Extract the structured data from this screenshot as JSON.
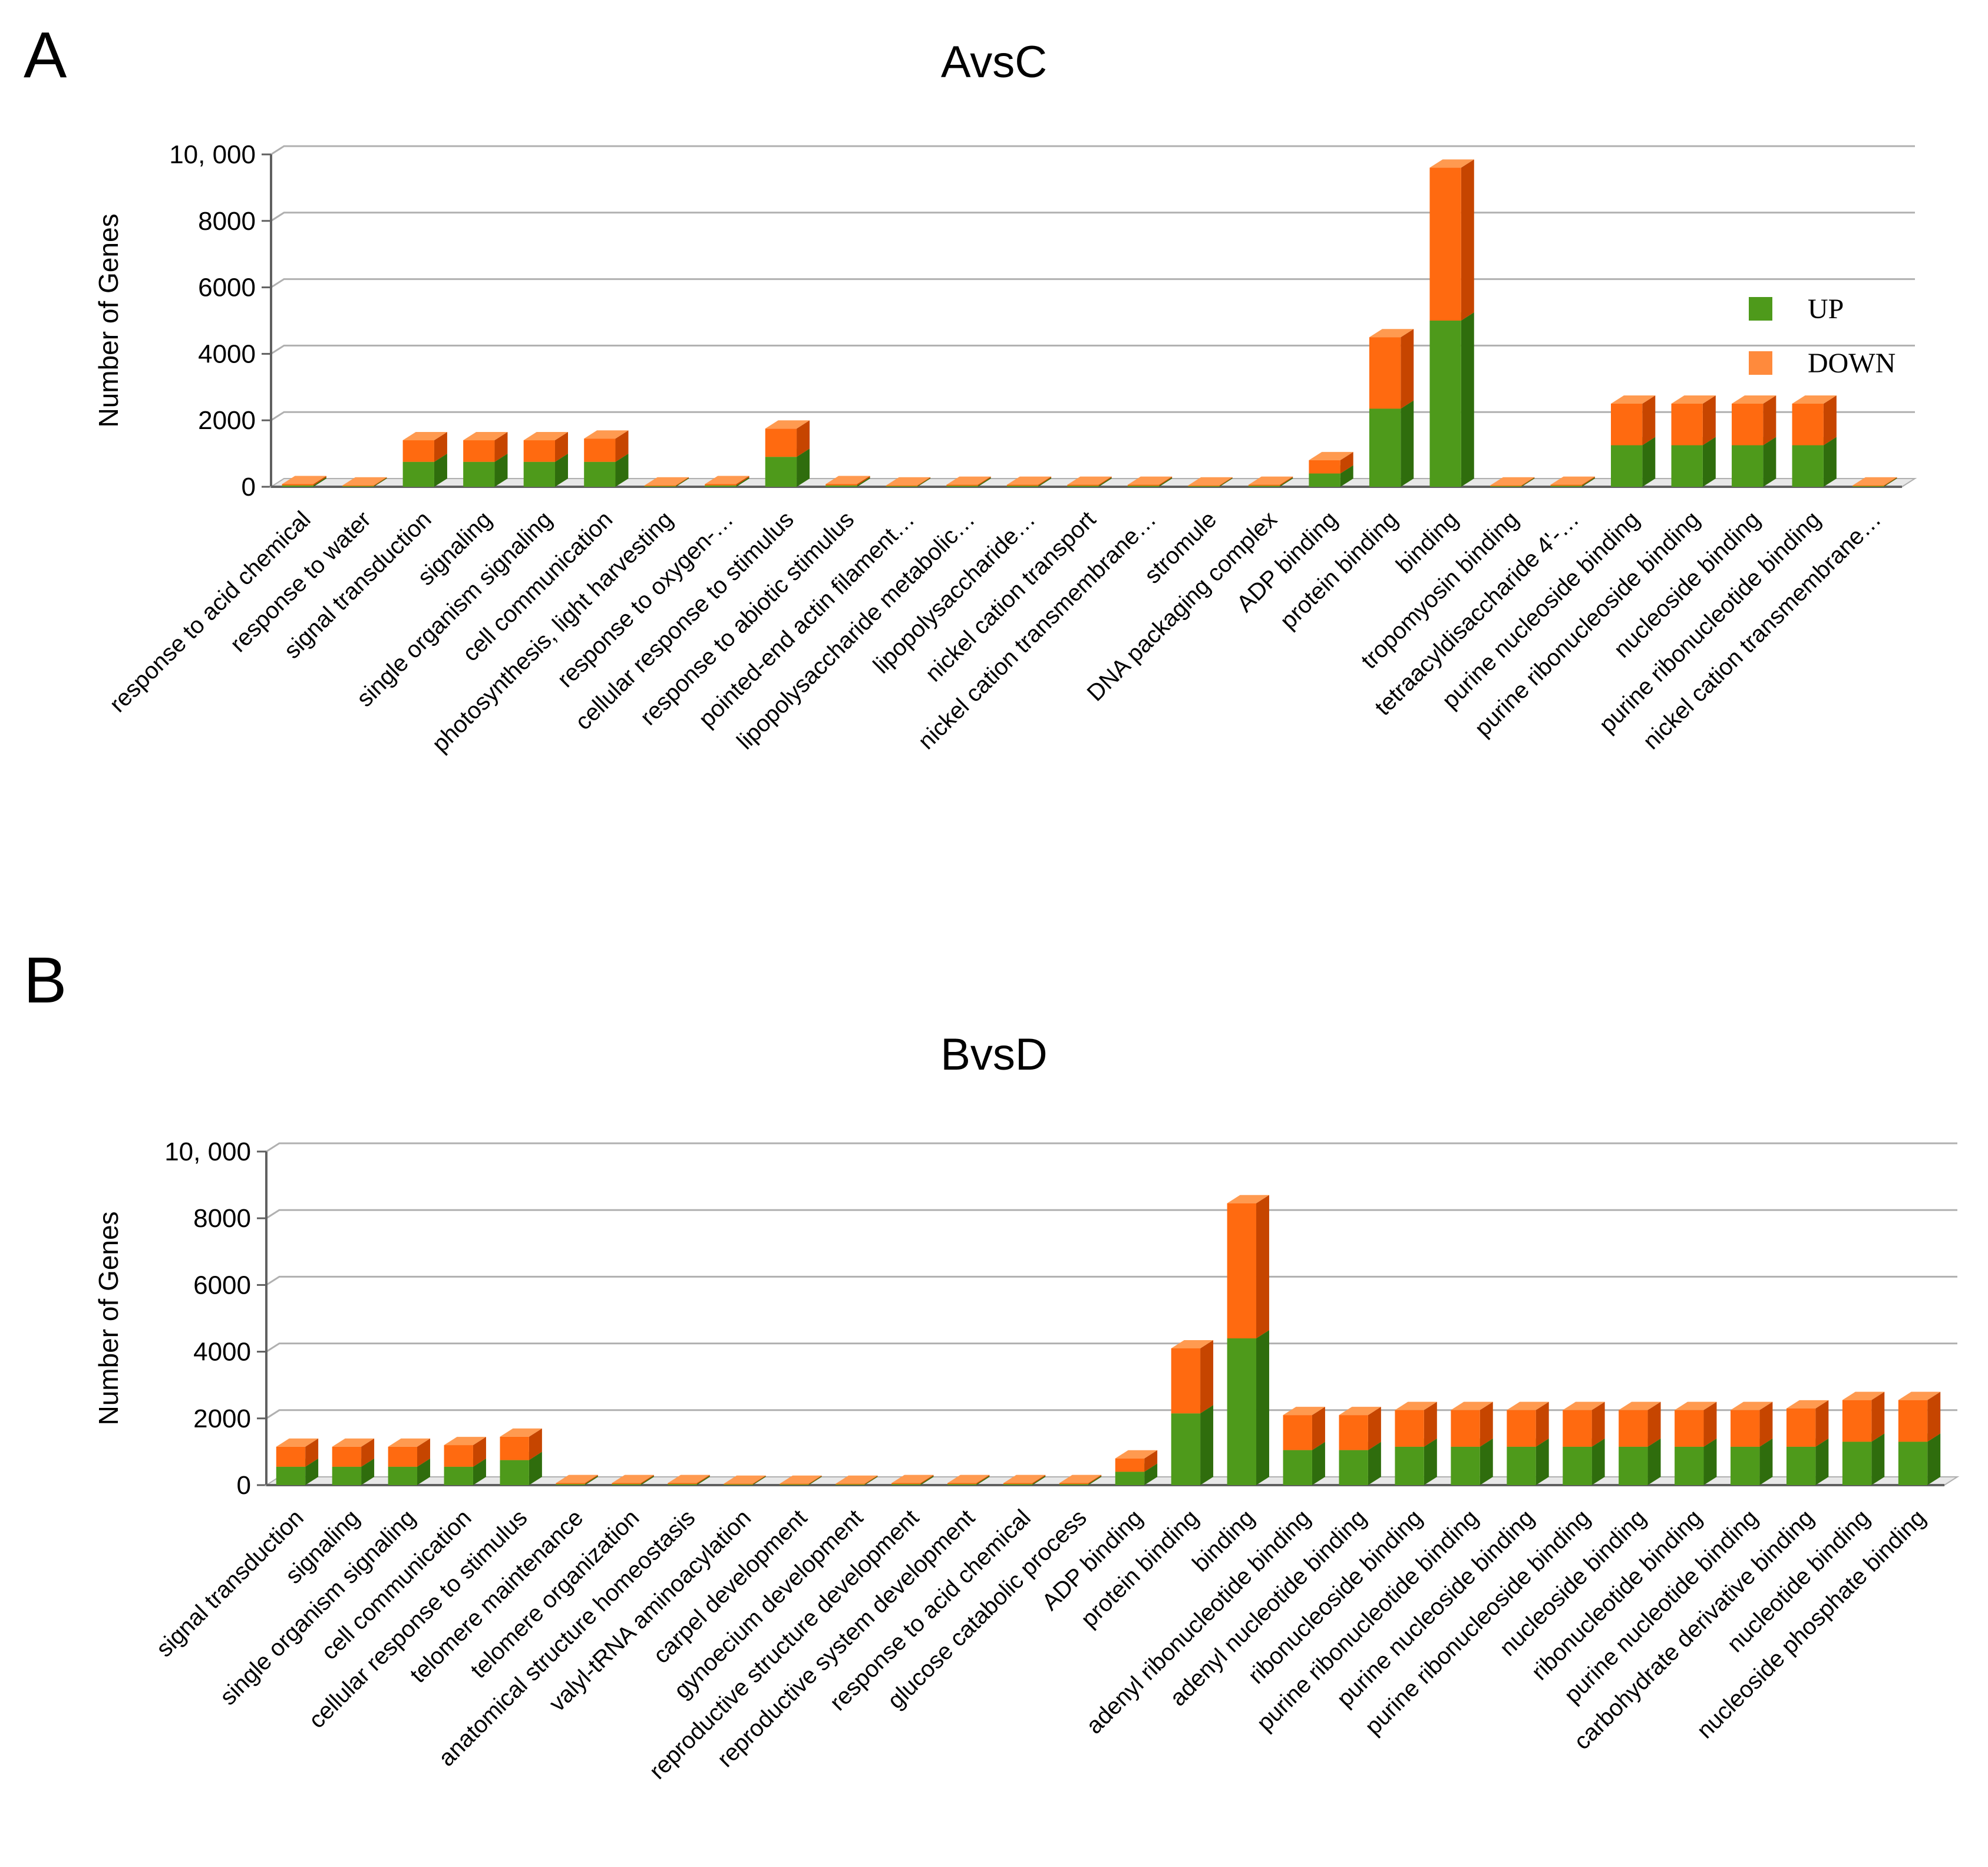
{
  "legend": {
    "up": "UP",
    "down": "DOWN"
  },
  "colors": {
    "up_front": "#4e9a1b",
    "up_side": "#2f6d0d",
    "up_top": "#6fbf2a",
    "down_front": "#ff6a10",
    "down_side": "#c64500",
    "down_top": "#ff9a50",
    "legend_up": "#4e9a1b",
    "legend_down": "#ff8a3c",
    "grid": "#b0b0b0",
    "axis": "#606060"
  },
  "chart_data": [
    {
      "panel_label": "A",
      "type": "bar",
      "stacked": true,
      "title": "AvsC",
      "xlabel": "",
      "ylabel": "Number of Genes",
      "ylim": [
        0,
        10000
      ],
      "yticks": [
        0,
        2000,
        4000,
        6000,
        8000,
        10000
      ],
      "ytick_labels": [
        "0",
        "2000",
        "4000",
        "6000",
        "8000",
        "10, 000"
      ],
      "legend_position": "right",
      "categories": [
        "response to acid chemical",
        "response to water",
        "signal transduction",
        "signaling",
        "single organism signaling",
        "cell communication",
        "photosynthesis, light harvesting",
        "response to oxygen-…",
        "cellular response to stimulus",
        "response to abiotic stimulus",
        "pointed-end actin filament…",
        "lipopolysaccharide metabolic…",
        "lipopolysaccharide…",
        "nickel cation transport",
        "nickel cation transmembrane…",
        "stromule",
        "DNA packaging complex",
        "ADP binding",
        "protein binding",
        "binding",
        "tropomyosin binding",
        "tetraacyldisaccharide 4'-…",
        "purine nucleoside binding",
        "purine ribonucleoside binding",
        "nucleoside binding",
        "purine ribonucleotide binding",
        "nickel cation transmembrane…"
      ],
      "series": [
        {
          "name": "UP",
          "values": [
            40,
            20,
            750,
            750,
            750,
            750,
            20,
            40,
            900,
            40,
            20,
            30,
            30,
            30,
            30,
            20,
            30,
            400,
            2350,
            5000,
            20,
            30,
            1250,
            1250,
            1250,
            1250,
            20
          ]
        },
        {
          "name": "DOWN",
          "values": [
            40,
            20,
            650,
            650,
            650,
            700,
            20,
            40,
            850,
            40,
            20,
            30,
            30,
            30,
            30,
            20,
            30,
            400,
            2150,
            4600,
            20,
            30,
            1250,
            1250,
            1250,
            1250,
            20
          ]
        }
      ]
    },
    {
      "panel_label": "B",
      "type": "bar",
      "stacked": true,
      "title": "BvsD",
      "xlabel": "",
      "ylabel": "Number of Genes",
      "ylim": [
        0,
        10000
      ],
      "yticks": [
        0,
        2000,
        4000,
        6000,
        8000,
        10000
      ],
      "ytick_labels": [
        "0",
        "2000",
        "4000",
        "6000",
        "8000",
        "10, 000"
      ],
      "categories": [
        "signal transduction",
        "signaling",
        "single organism signaling",
        "cell communication",
        "cellular response to stimulus",
        "telomere maintenance",
        "telomere organization",
        "anatomical structure homeostasis",
        "valyl-tRNA aminoacylation",
        "carpel development",
        "gynoecium development",
        "reproductive structure development",
        "reproductive system development",
        "response to acid chemical",
        "glucose catabolic process",
        "ADP binding",
        "protein binding",
        "binding",
        "adenyl ribonucleotide binding",
        "adenyl nucleotide binding",
        "ribonucleoside binding",
        "purine ribonucleotide binding",
        "purine nucleoside binding",
        "purine ribonucleoside binding",
        "nucleoside binding",
        "ribonucleotide binding",
        "purine nucleotide binding",
        "carbohydrate derivative binding",
        "nucleotide binding",
        "nucleoside phosphate binding"
      ],
      "series": [
        {
          "name": "UP",
          "values": [
            550,
            550,
            550,
            550,
            750,
            30,
            30,
            30,
            20,
            20,
            20,
            30,
            30,
            30,
            30,
            400,
            2150,
            4400,
            1050,
            1050,
            1150,
            1150,
            1150,
            1150,
            1150,
            1150,
            1150,
            1150,
            1300,
            1300
          ]
        },
        {
          "name": "DOWN",
          "values": [
            600,
            600,
            600,
            650,
            700,
            30,
            30,
            30,
            20,
            20,
            20,
            30,
            30,
            30,
            30,
            400,
            1950,
            4050,
            1050,
            1050,
            1100,
            1100,
            1100,
            1100,
            1100,
            1100,
            1100,
            1150,
            1250,
            1250
          ]
        }
      ]
    }
  ]
}
